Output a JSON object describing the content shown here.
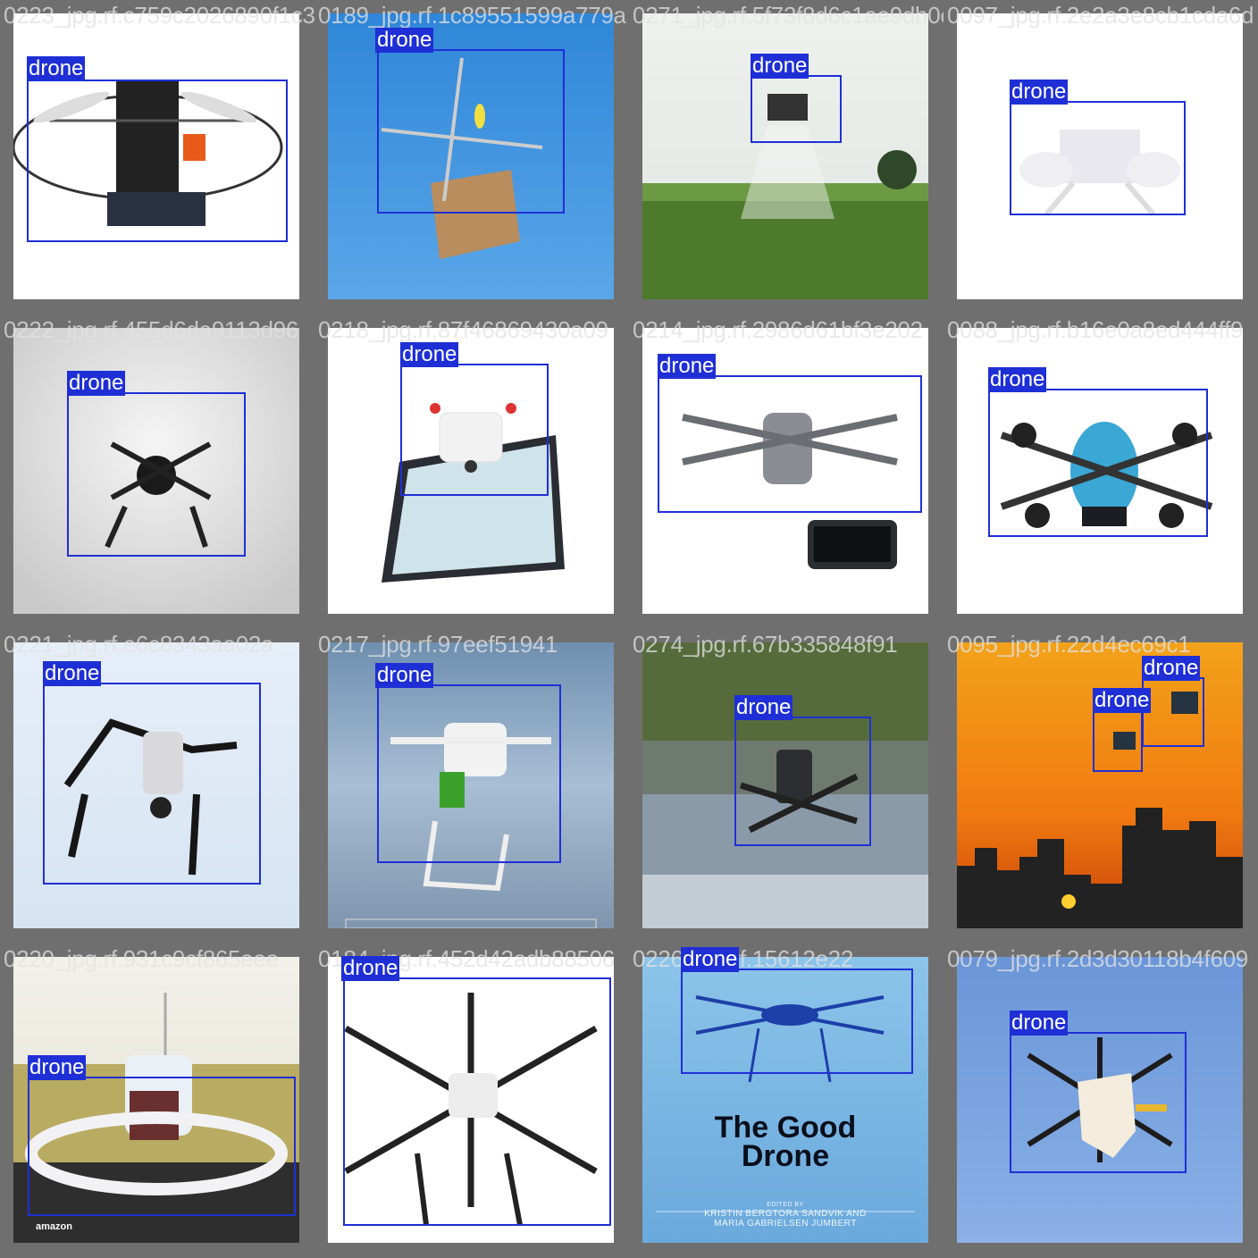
{
  "grid": {
    "tiles": [
      {
        "filename": "0223_jpg.rf.c759c2026890f1c383948e8f1a8d6599a779a",
        "labels": [
          "drone"
        ]
      },
      {
        "filename": "0189_jpg.rf.1c89551599a779a",
        "labels": [
          "drone"
        ]
      },
      {
        "filename": "0271_jpg.rf.5f73f8d6c1ae9db0ec34e7f2a3e8cb1cda6d",
        "labels": [
          "drone"
        ]
      },
      {
        "filename": "0097_jpg.rf.2e2a3e8cb1cda6d",
        "labels": [
          "drone"
        ]
      },
      {
        "filename": "0222_jpg.rf.455d6da9113d96",
        "labels": [
          "drone"
        ]
      },
      {
        "filename": "0218_jpg.rf.87f46869430a09",
        "labels": [
          "drone"
        ]
      },
      {
        "filename": "0214_jpg.rf.2986d61bf3e202",
        "labels": [
          "drone"
        ]
      },
      {
        "filename": "0088_jpg.rf.b16e0a8ed444ff9",
        "labels": [
          "drone"
        ]
      },
      {
        "filename": "0221_jpg.rf.e6c8343aa02a",
        "labels": [
          "drone"
        ]
      },
      {
        "filename": "0217_jpg.rf.97eef51941",
        "labels": [
          "drone"
        ]
      },
      {
        "filename": "0274_jpg.rf.67b335848f91",
        "labels": [
          "drone"
        ]
      },
      {
        "filename": "0095_jpg.rf.22d4ec69c1",
        "labels": [
          "drone",
          "drone"
        ]
      },
      {
        "filename": "0220_jpg.rf.931c9cf865eee",
        "labels": [
          "drone"
        ]
      },
      {
        "filename": "0184_jpg.rf.452d42adb88506",
        "labels": [
          "drone"
        ]
      },
      {
        "filename": "0226_jpg.rf.15612e22",
        "labels": [
          "drone"
        ]
      },
      {
        "filename": "0079_jpg.rf.2d3d30118b4f609",
        "labels": [
          "drone"
        ]
      }
    ]
  },
  "book_cover": {
    "title_line1": "The Good",
    "title_line2": "Drone",
    "editors_line1": "EDITED BY",
    "editors_line2": "KRISTIN BERGTORA SANDVIK AND",
    "editors_line3": "MARIA GABRIELSEN JUMBERT"
  },
  "stamp": "amazon",
  "colors": {
    "box": "#1f2fd6",
    "label_text": "#ffffff"
  }
}
